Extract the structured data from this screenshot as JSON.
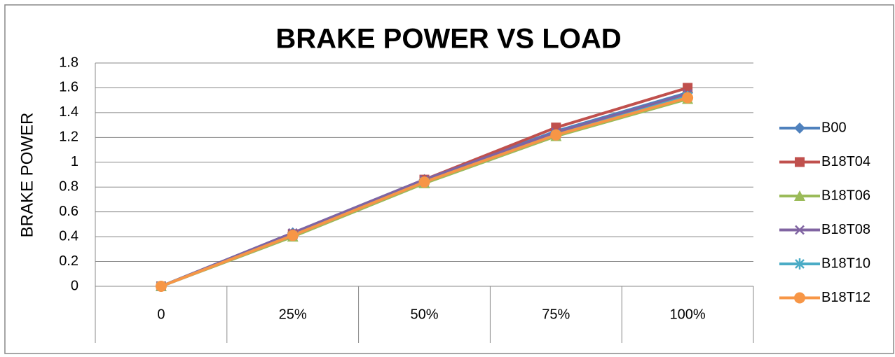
{
  "chart_data": {
    "type": "line",
    "title": "BRAKE POWER VS LOAD",
    "y_label": "BRAKE POWER",
    "categories": [
      "0",
      "25%",
      "50%",
      "75%",
      "100%"
    ],
    "series": [
      {
        "name": "B00",
        "color": "#4f81bd",
        "marker": "diamond",
        "values": [
          0,
          0.43,
          0.86,
          1.25,
          1.56
        ]
      },
      {
        "name": "B18T04",
        "color": "#c0504d",
        "marker": "square",
        "values": [
          0,
          0.42,
          0.86,
          1.28,
          1.6
        ]
      },
      {
        "name": "B18T06",
        "color": "#9bbb59",
        "marker": "triangle",
        "values": [
          0,
          0.4,
          0.83,
          1.21,
          1.51
        ]
      },
      {
        "name": "B18T08",
        "color": "#8064a2",
        "marker": "x",
        "values": [
          0,
          0.43,
          0.86,
          1.24,
          1.55
        ]
      },
      {
        "name": "B18T10",
        "color": "#4bacc6",
        "marker": "asterisk",
        "values": [
          0,
          0.41,
          0.84,
          1.22,
          1.53
        ]
      },
      {
        "name": "B18T12",
        "color": "#f79646",
        "marker": "circle",
        "values": [
          0,
          0.41,
          0.84,
          1.22,
          1.52
        ]
      }
    ],
    "ylim": [
      0,
      1.8
    ],
    "yticks": [
      0,
      0.2,
      0.4,
      0.6,
      0.8,
      1,
      1.2,
      1.4,
      1.6,
      1.8
    ],
    "grid": true,
    "legend": "right"
  }
}
